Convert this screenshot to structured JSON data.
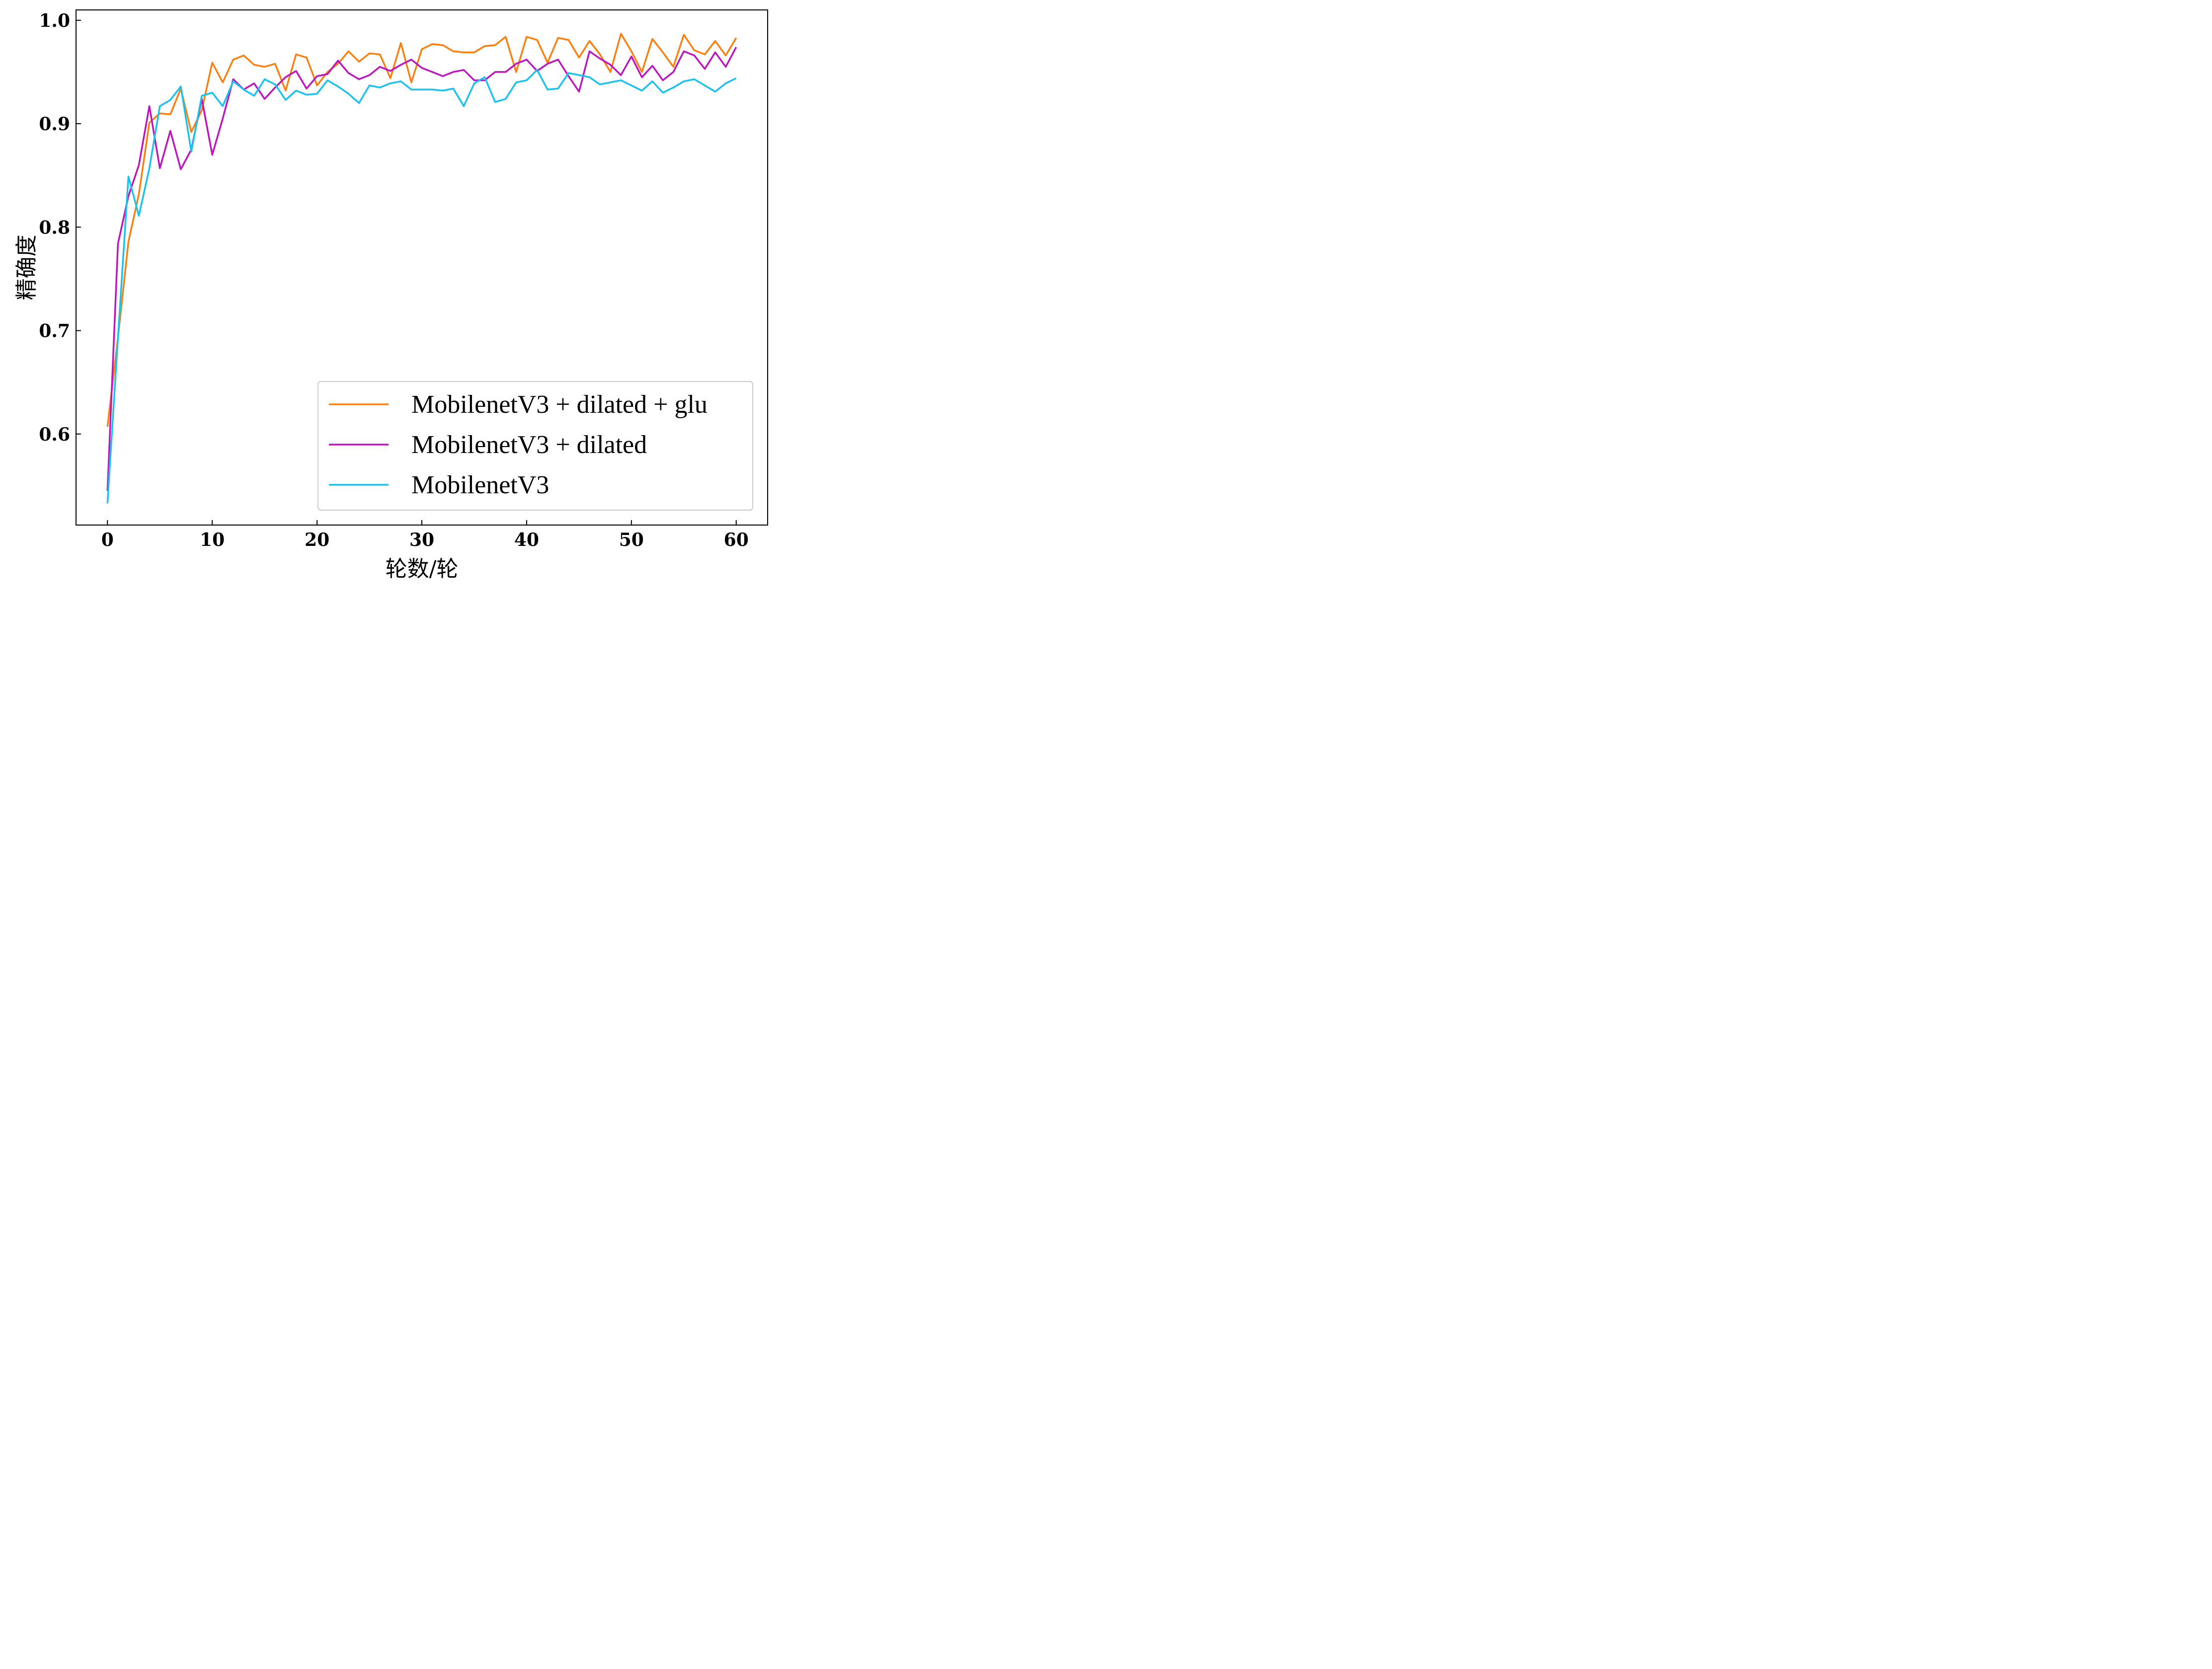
{
  "chart_data": {
    "type": "line",
    "xlabel": "轮数/轮",
    "ylabel": "精确度",
    "xlim": [
      -3,
      63
    ],
    "ylim": [
      0.512,
      1.01
    ],
    "xticks": [
      0,
      10,
      20,
      30,
      40,
      50,
      60
    ],
    "xtick_labels": [
      "0",
      "10",
      "20",
      "30",
      "40",
      "50",
      "60"
    ],
    "yticks": [
      0.6,
      0.7,
      0.8,
      0.9,
      1.0
    ],
    "ytick_labels": [
      "0.6",
      "0.7",
      "0.8",
      "0.9",
      "1.0"
    ],
    "grid": false,
    "legend_position": "lower-right",
    "x": [
      0,
      1,
      2,
      3,
      4,
      5,
      6,
      7,
      8,
      9,
      10,
      11,
      12,
      13,
      14,
      15,
      16,
      17,
      18,
      19,
      20,
      21,
      22,
      23,
      24,
      25,
      26,
      27,
      28,
      29,
      30,
      31,
      32,
      33,
      34,
      35,
      36,
      37,
      38,
      39,
      40,
      41,
      42,
      43,
      44,
      45,
      46,
      47,
      48,
      49,
      50,
      51,
      52,
      53,
      54,
      55,
      56,
      57,
      58,
      59,
      60
    ],
    "series": [
      {
        "name": "MobilenetV3 + dilated + glu",
        "color": "#ff7f0e",
        "values": [
          0.607,
          0.693,
          0.786,
          0.832,
          0.901,
          0.91,
          0.909,
          0.934,
          0.892,
          0.913,
          0.959,
          0.94,
          0.962,
          0.966,
          0.957,
          0.955,
          0.958,
          0.932,
          0.967,
          0.964,
          0.937,
          0.95,
          0.958,
          0.97,
          0.96,
          0.968,
          0.967,
          0.944,
          0.978,
          0.94,
          0.972,
          0.977,
          0.976,
          0.97,
          0.969,
          0.969,
          0.975,
          0.976,
          0.984,
          0.95,
          0.984,
          0.981,
          0.959,
          0.983,
          0.981,
          0.964,
          0.98,
          0.967,
          0.95,
          0.987,
          0.97,
          0.95,
          0.982,
          0.969,
          0.955,
          0.986,
          0.971,
          0.967,
          0.98,
          0.966,
          0.983
        ]
      },
      {
        "name": "MobilenetV3 + dilated",
        "color": "#c014c0",
        "values": [
          0.545,
          0.784,
          0.83,
          0.86,
          0.917,
          0.857,
          0.893,
          0.856,
          0.875,
          0.924,
          0.87,
          0.905,
          0.943,
          0.933,
          0.939,
          0.924,
          0.935,
          0.945,
          0.951,
          0.934,
          0.946,
          0.948,
          0.961,
          0.949,
          0.943,
          0.947,
          0.955,
          0.951,
          0.957,
          0.962,
          0.954,
          0.95,
          0.946,
          0.95,
          0.952,
          0.942,
          0.942,
          0.95,
          0.95,
          0.958,
          0.962,
          0.951,
          0.958,
          0.962,
          0.946,
          0.931,
          0.97,
          0.963,
          0.957,
          0.947,
          0.965,
          0.945,
          0.956,
          0.942,
          0.95,
          0.97,
          0.966,
          0.953,
          0.969,
          0.955,
          0.974
        ]
      },
      {
        "name": "MobilenetV3",
        "color": "#17c3f0",
        "values": [
          0.533,
          0.693,
          0.849,
          0.811,
          0.857,
          0.917,
          0.923,
          0.936,
          0.873,
          0.927,
          0.93,
          0.917,
          0.941,
          0.933,
          0.927,
          0.943,
          0.938,
          0.923,
          0.932,
          0.928,
          0.929,
          0.942,
          0.936,
          0.929,
          0.92,
          0.937,
          0.935,
          0.939,
          0.941,
          0.933,
          0.933,
          0.933,
          0.932,
          0.934,
          0.917,
          0.939,
          0.945,
          0.921,
          0.924,
          0.94,
          0.942,
          0.952,
          0.933,
          0.934,
          0.949,
          0.947,
          0.945,
          0.938,
          0.94,
          0.942,
          0.937,
          0.932,
          0.941,
          0.93,
          0.935,
          0.941,
          0.943,
          0.937,
          0.931,
          0.939,
          0.944
        ]
      }
    ]
  }
}
